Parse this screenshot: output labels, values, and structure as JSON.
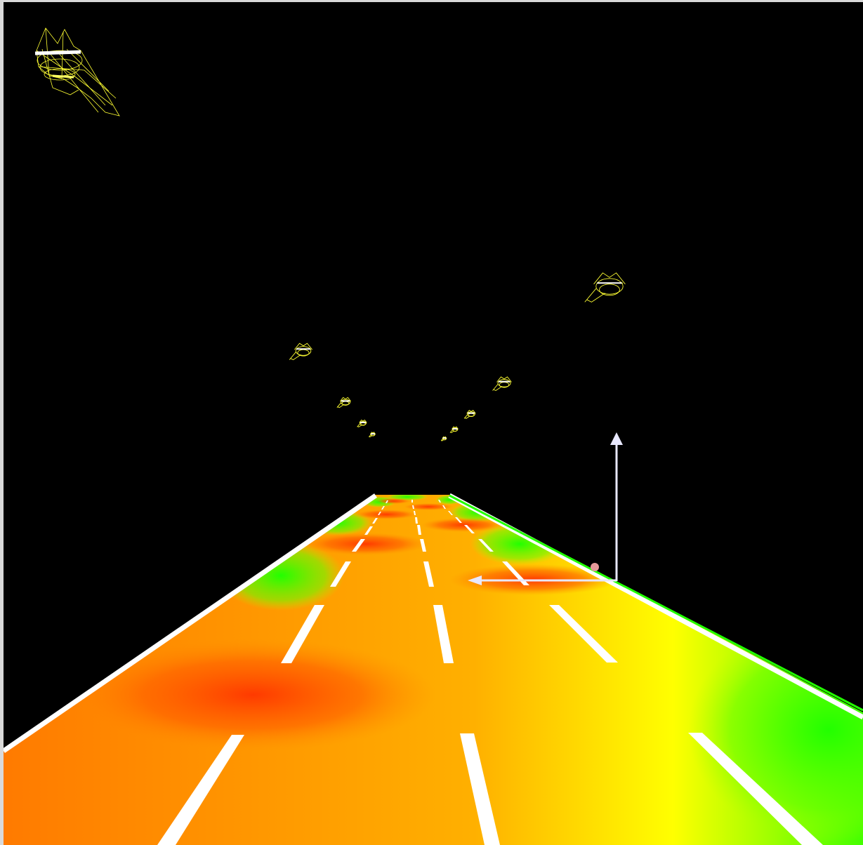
{
  "scene": {
    "description_colors": {
      "background": "#000000",
      "road_low": "#00ff00",
      "road_mid": "#ffff00",
      "road_high": "#ff4400",
      "lane_marking": "#ffffff",
      "light_wireframe": "#ffff33",
      "axis_arrow": "#e8e8ff"
    },
    "icons": {
      "streetlight": "streetlight-wireframe-icon",
      "axis": "coordinate-axis-icon"
    }
  }
}
